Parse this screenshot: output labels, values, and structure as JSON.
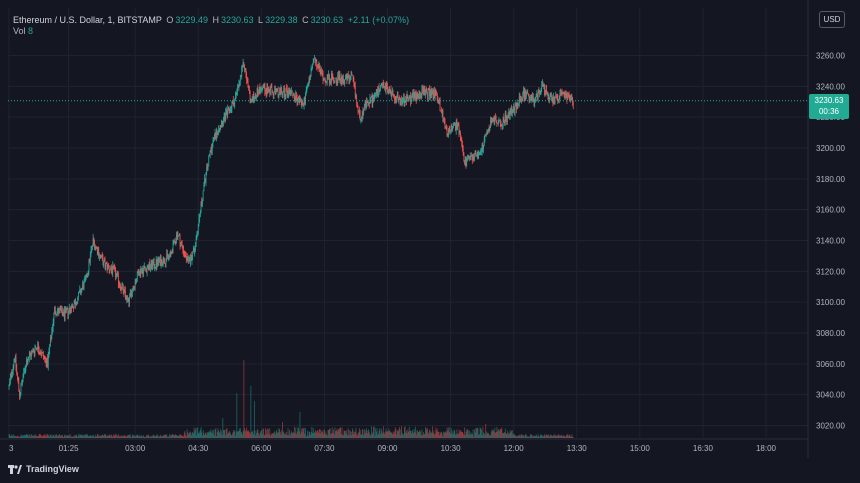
{
  "legend": {
    "symbol": "Ethereum / U.S. Dollar, 1, BITSTAMP",
    "o_label": "O",
    "o": "3229.49",
    "h_label": "H",
    "h": "3230.63",
    "l_label": "L",
    "l": "3229.38",
    "c_label": "C",
    "c": "3230.63",
    "change": "+2.11 (+0.07%)",
    "vol_label": "Vol",
    "vol": "8"
  },
  "currency": "USD",
  "last_price": {
    "price": "3230.63",
    "countdown": "00:36"
  },
  "branding": {
    "name": "TradingView",
    "icon": "tradingview-logo"
  },
  "colors": {
    "up": "#26a69a",
    "down": "#ef5350",
    "background": "#141722",
    "grid": "#1f2330",
    "axis_text": "#b2b5be",
    "price_tag": "#22ab94"
  },
  "chart_data": {
    "type": "candlestick",
    "y_ticks": [
      3020,
      3040,
      3060,
      3080,
      3100,
      3120,
      3140,
      3160,
      3180,
      3200,
      3220,
      3240,
      3260
    ],
    "y_tick_labels": [
      "3020.00",
      "3040.00",
      "3060.00",
      "3080.00",
      "3100.00",
      "3120.00",
      "3140.00",
      "3160.00",
      "3180.00",
      "3200.00",
      "3220.00",
      "3240.00",
      "3260.00"
    ],
    "ylim": [
      3010,
      3290
    ],
    "x_tick_labels": [
      "3",
      "01:25",
      "03:00",
      "04:30",
      "06:00",
      "07:30",
      "09:00",
      "10:30",
      "12:00",
      "13:30",
      "15:00",
      "16:30",
      "18:00"
    ],
    "x_tick_minutes": [
      0,
      85,
      180,
      270,
      360,
      450,
      540,
      630,
      720,
      810,
      900,
      990,
      1080
    ],
    "xlim_minutes": [
      0,
      1195
    ],
    "last_price": 3230.63,
    "price_anchors": [
      [
        0,
        3045
      ],
      [
        8,
        3065
      ],
      [
        15,
        3040
      ],
      [
        25,
        3062
      ],
      [
        40,
        3072
      ],
      [
        55,
        3060
      ],
      [
        65,
        3095
      ],
      [
        80,
        3092
      ],
      [
        95,
        3100
      ],
      [
        110,
        3115
      ],
      [
        120,
        3140
      ],
      [
        135,
        3125
      ],
      [
        150,
        3120
      ],
      [
        170,
        3100
      ],
      [
        185,
        3120
      ],
      [
        210,
        3125
      ],
      [
        230,
        3130
      ],
      [
        240,
        3145
      ],
      [
        255,
        3125
      ],
      [
        265,
        3135
      ],
      [
        278,
        3175
      ],
      [
        288,
        3200
      ],
      [
        300,
        3215
      ],
      [
        315,
        3225
      ],
      [
        325,
        3235
      ],
      [
        335,
        3255
      ],
      [
        345,
        3230
      ],
      [
        360,
        3240
      ],
      [
        380,
        3235
      ],
      [
        400,
        3237
      ],
      [
        420,
        3228
      ],
      [
        435,
        3257
      ],
      [
        450,
        3245
      ],
      [
        470,
        3245
      ],
      [
        490,
        3245
      ],
      [
        500,
        3220
      ],
      [
        510,
        3228
      ],
      [
        535,
        3240
      ],
      [
        560,
        3230
      ],
      [
        590,
        3236
      ],
      [
        610,
        3235
      ],
      [
        625,
        3210
      ],
      [
        640,
        3215
      ],
      [
        650,
        3190
      ],
      [
        665,
        3195
      ],
      [
        675,
        3200
      ],
      [
        690,
        3220
      ],
      [
        700,
        3215
      ],
      [
        720,
        3225
      ],
      [
        735,
        3235
      ],
      [
        750,
        3230
      ],
      [
        760,
        3240
      ],
      [
        775,
        3230
      ],
      [
        790,
        3235
      ],
      [
        805,
        3230
      ]
    ],
    "volume_spikes": [
      [
        335,
        78
      ],
      [
        345,
        52
      ],
      [
        325,
        45
      ],
      [
        350,
        37
      ],
      [
        305,
        20
      ],
      [
        415,
        26
      ],
      [
        390,
        16
      ],
      [
        680,
        14
      ],
      [
        560,
        12
      ]
    ]
  }
}
